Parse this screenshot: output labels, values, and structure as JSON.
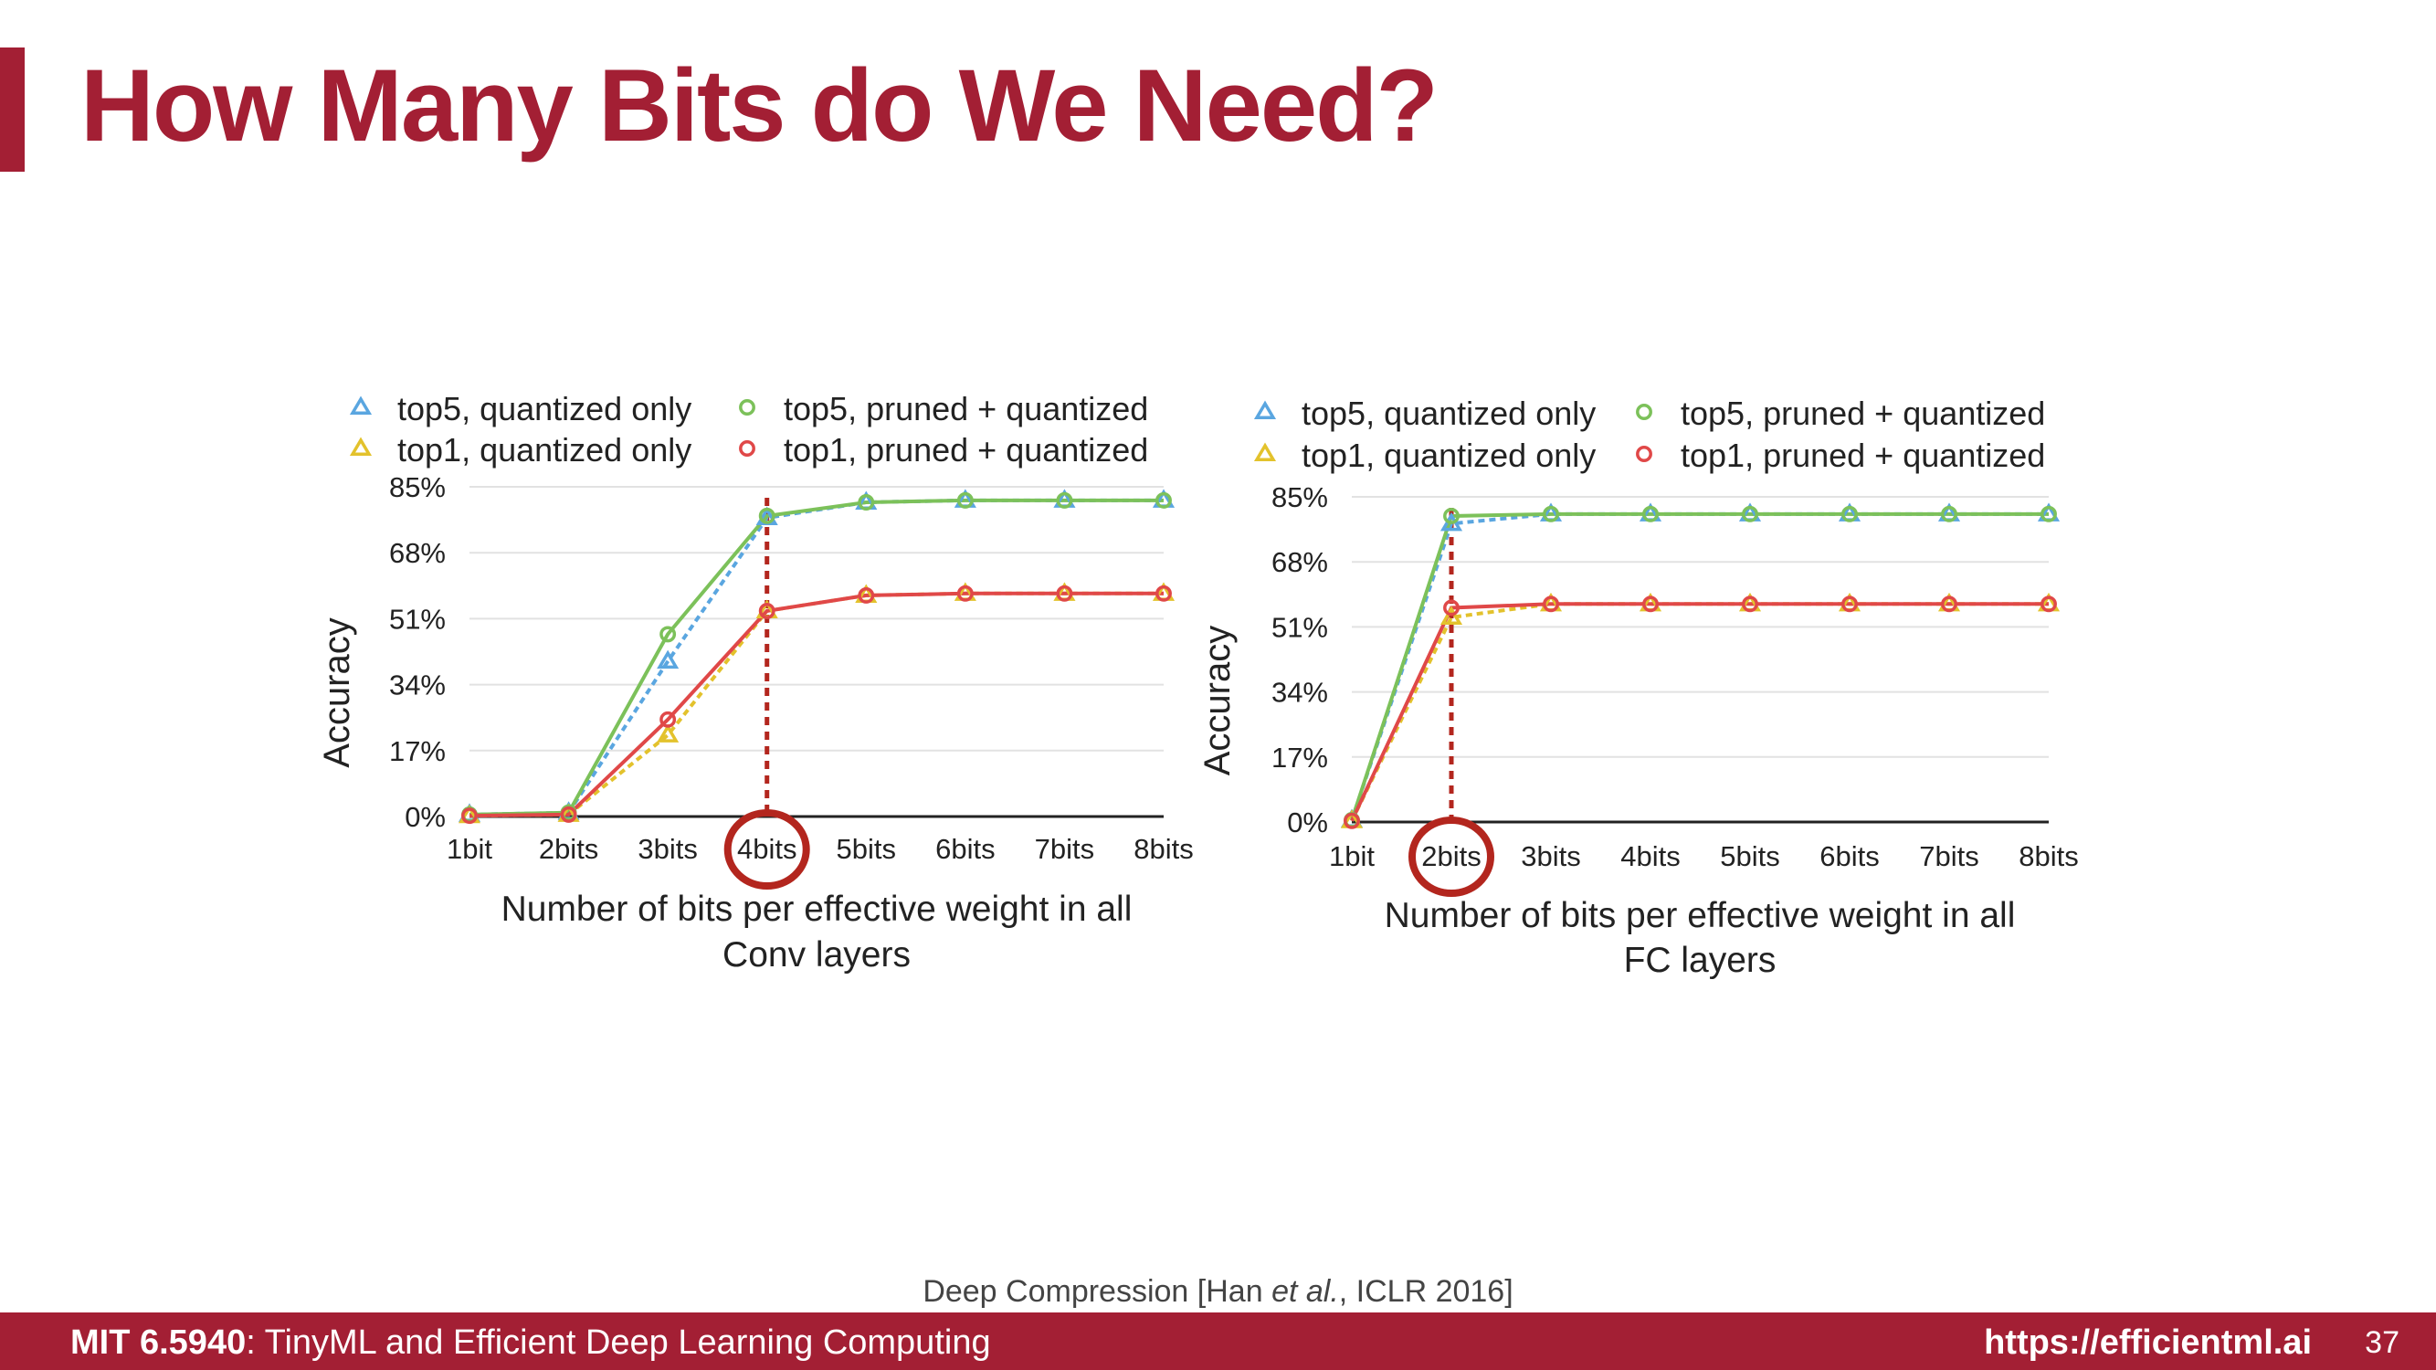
{
  "slide": {
    "title": "How Many Bits do We Need?",
    "citation_pre": "Deep Compression [Han ",
    "citation_em": "et al.",
    "citation_post": ", ICLR 2016]",
    "footer_course": "MIT 6.5940",
    "footer_course_rest": ": TinyML and Efficient Deep Learning Computing",
    "footer_url": "https://efficientml.ai",
    "page_number": "37"
  },
  "colors": {
    "accent": "#a31f34",
    "top5_quantized": "#5aa6e0",
    "top1_quantized": "#e3c22c",
    "top5_pruned": "#7cc15a",
    "top1_pruned": "#e04848",
    "highlight": "#b3261e"
  },
  "chart_data": [
    {
      "type": "line",
      "categories": [
        "1bit",
        "2bits",
        "3bits",
        "4bits",
        "5bits",
        "6bits",
        "7bits",
        "8bits"
      ],
      "y_ticks": [
        "0%",
        "17%",
        "34%",
        "51%",
        "68%",
        "85%"
      ],
      "ylim": [
        0,
        85
      ],
      "ylabel": "Accuracy",
      "xlabel_line1": "Number of bits per effective weight in all",
      "xlabel_line2": "Conv layers",
      "highlight_category": "4bits",
      "grid": true,
      "legend_position": "top",
      "series": [
        {
          "name": "top5, quantized only",
          "marker": "triangle",
          "dashed": true,
          "color_key": "top5_quantized",
          "values": [
            0.5,
            1.0,
            40.0,
            77.0,
            81.0,
            81.5,
            81.5,
            81.5
          ]
        },
        {
          "name": "top1, quantized only",
          "marker": "triangle",
          "dashed": true,
          "color_key": "top1_quantized",
          "values": [
            0.2,
            0.5,
            21.0,
            53.0,
            57.0,
            57.5,
            57.5,
            57.5
          ]
        },
        {
          "name": "top5, pruned + quantized",
          "marker": "circle",
          "dashed": false,
          "color_key": "top5_pruned",
          "values": [
            0.5,
            1.0,
            47.0,
            77.5,
            81.0,
            81.5,
            81.5,
            81.5
          ]
        },
        {
          "name": "top1, pruned + quantized",
          "marker": "circle",
          "dashed": false,
          "color_key": "top1_pruned",
          "values": [
            0.2,
            0.5,
            25.0,
            53.0,
            57.0,
            57.5,
            57.5,
            57.5
          ]
        }
      ]
    },
    {
      "type": "line",
      "categories": [
        "1bit",
        "2bits",
        "3bits",
        "4bits",
        "5bits",
        "6bits",
        "7bits",
        "8bits"
      ],
      "y_ticks": [
        "0%",
        "17%",
        "34%",
        "51%",
        "68%",
        "85%"
      ],
      "ylim": [
        0,
        85
      ],
      "ylabel": "Accuracy",
      "xlabel_line1": "Number of bits per effective weight in all",
      "xlabel_line2": "FC layers",
      "highlight_category": "2bits",
      "grid": true,
      "legend_position": "top",
      "series": [
        {
          "name": "top5, quantized only",
          "marker": "triangle",
          "dashed": true,
          "color_key": "top5_quantized",
          "values": [
            0.5,
            78.0,
            80.5,
            80.5,
            80.5,
            80.5,
            80.5,
            80.5
          ]
        },
        {
          "name": "top1, quantized only",
          "marker": "triangle",
          "dashed": true,
          "color_key": "top1_quantized",
          "values": [
            0.3,
            53.5,
            57.0,
            57.0,
            57.0,
            57.0,
            57.0,
            57.0
          ]
        },
        {
          "name": "top5, pruned + quantized",
          "marker": "circle",
          "dashed": false,
          "color_key": "top5_pruned",
          "values": [
            0.5,
            80.0,
            80.5,
            80.5,
            80.5,
            80.5,
            80.5,
            80.5
          ]
        },
        {
          "name": "top1, pruned + quantized",
          "marker": "circle",
          "dashed": false,
          "color_key": "top1_pruned",
          "values": [
            0.3,
            56.0,
            57.0,
            57.0,
            57.0,
            57.0,
            57.0,
            57.0
          ]
        }
      ]
    }
  ]
}
